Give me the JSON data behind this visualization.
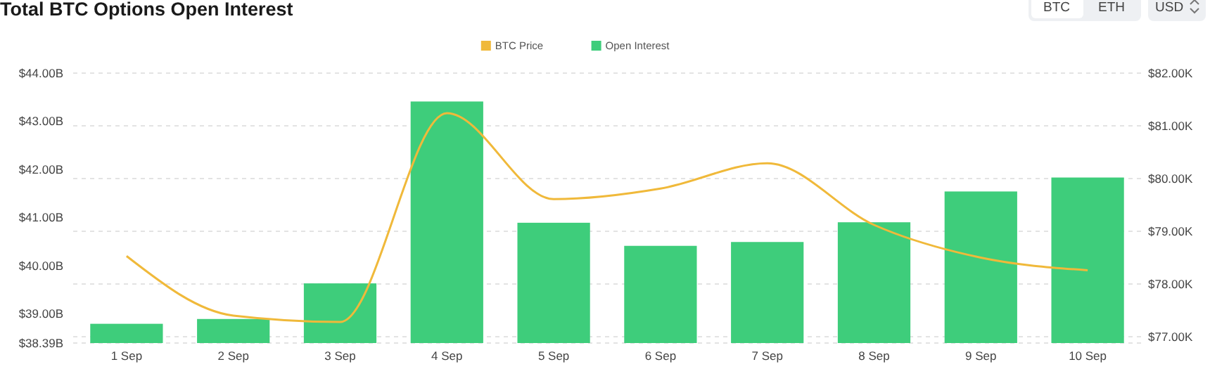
{
  "chart_data": {
    "type": "bar",
    "title": "Total BTC Options Open Interest",
    "categories": [
      "1 Sep",
      "2 Sep",
      "3 Sep",
      "4 Sep",
      "5 Sep",
      "6 Sep",
      "7 Sep",
      "8 Sep",
      "9 Sep",
      "10 Sep"
    ],
    "series": [
      {
        "name": "BTC Price",
        "type": "line",
        "axis": "y2",
        "color": "#f0b93a",
        "values": [
          78.53,
          77.4,
          77.28,
          81.24,
          79.61,
          79.81,
          80.29,
          79.12,
          78.5,
          78.26
        ]
      },
      {
        "name": "Open Interest",
        "color": "#3ecd7b",
        "values": [
          38.79,
          38.89,
          39.63,
          43.41,
          40.89,
          40.41,
          40.49,
          40.9,
          41.54,
          41.83
        ]
      }
    ],
    "ylim": [
      38.39,
      44
    ],
    "yticks": [
      {
        "value": 38.39,
        "label": "$38.39B"
      },
      {
        "value": 39,
        "label": "$39.00B"
      },
      {
        "value": 40,
        "label": "$40.00B"
      },
      {
        "value": 41,
        "label": "$41.00B"
      },
      {
        "value": 42,
        "label": "$42.00B"
      },
      {
        "value": 43,
        "label": "$43.00B"
      },
      {
        "value": 44,
        "label": "$44.00B"
      }
    ],
    "y2lim": [
      76.88,
      82
    ],
    "y2ticks": [
      {
        "value": 77,
        "label": "$77.00K"
      },
      {
        "value": 78,
        "label": "$78.00K"
      },
      {
        "value": 79,
        "label": "$79.00K"
      },
      {
        "value": 80,
        "label": "$80.00K"
      },
      {
        "value": 81,
        "label": "$81.00K"
      },
      {
        "value": 82,
        "label": "$82.00K"
      }
    ],
    "grid": "y2",
    "legend": "top",
    "marker": "none",
    "annotations": [
      "BTC",
      "ETH",
      "USD"
    ]
  }
}
